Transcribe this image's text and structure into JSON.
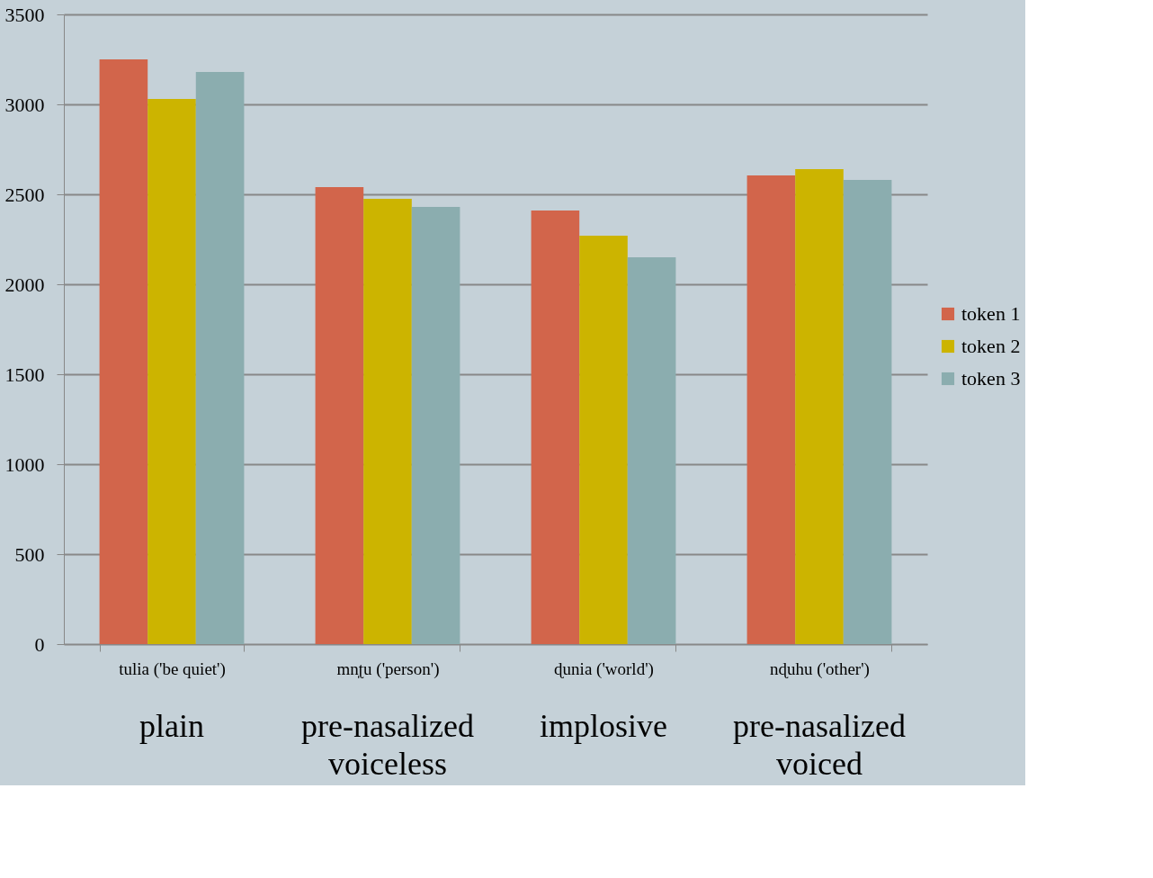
{
  "chart_data": {
    "type": "bar",
    "categories": [
      "tulia ('be quiet')",
      "mn̩ʈu ('person')",
      "ɖunia ('world')",
      "nɖuhu ('other')"
    ],
    "series": [
      {
        "name": "token 1",
        "color": "#d2654b",
        "values": [
          3250,
          2540,
          2410,
          2605
        ]
      },
      {
        "name": "token 2",
        "color": "#ccb400",
        "values": [
          3030,
          2475,
          2270,
          2640
        ]
      },
      {
        "name": "token 3",
        "color": "#8badaf",
        "values": [
          3180,
          2430,
          2150,
          2580
        ]
      }
    ],
    "ylim": [
      0,
      3500
    ],
    "yticks": [
      0,
      500,
      1000,
      1500,
      2000,
      2500,
      3000,
      3500
    ],
    "grid": "y",
    "legend": "right",
    "annotations": [
      "plain",
      "pre-nasalized voiceless",
      "implosive",
      "pre-nasalized voiced"
    ]
  }
}
